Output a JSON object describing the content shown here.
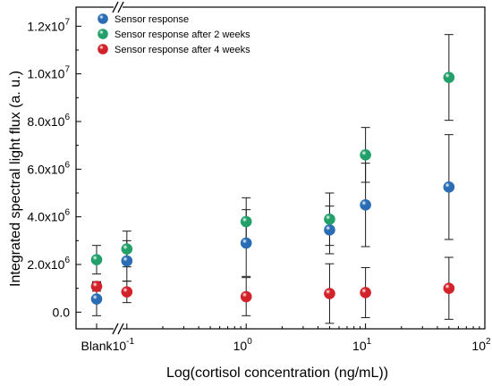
{
  "chart_data": {
    "type": "scatter",
    "xlabel": "Log(cortisol concentration (ng/mL))",
    "ylabel": "Integrated spectral light flux (a. u.)",
    "x_scale": "log",
    "xlim": [
      0.0375,
      100
    ],
    "ylim": [
      -700000,
      12800000
    ],
    "x_break": true,
    "grid": false,
    "legend_position": "top-left",
    "categorical_x": {
      "label": "Blank"
    },
    "x_tick_labels": [
      {
        "value": 0.1,
        "mantissa": "10",
        "exp": "-1"
      },
      {
        "value": 1,
        "mantissa": "10",
        "exp": "0"
      },
      {
        "value": 10,
        "mantissa": "10",
        "exp": "1"
      },
      {
        "value": 100,
        "mantissa": "10",
        "exp": "2"
      }
    ],
    "y_tick_labels": [
      {
        "value": 0,
        "mantissa": "0.0",
        "exp": ""
      },
      {
        "value": 2000000,
        "mantissa": "2.0x10",
        "exp": "6"
      },
      {
        "value": 4000000,
        "mantissa": "4.0x10",
        "exp": "6"
      },
      {
        "value": 6000000,
        "mantissa": "6.0x10",
        "exp": "6"
      },
      {
        "value": 8000000,
        "mantissa": "8.0x10",
        "exp": "6"
      },
      {
        "value": 10000000,
        "mantissa": "1.0x10",
        "exp": "7"
      },
      {
        "value": 12000000,
        "mantissa": "1.2x10",
        "exp": "7"
      }
    ],
    "series": [
      {
        "name": "Sensor response",
        "color": "#2a6db5",
        "points": [
          {
            "x": "Blank",
            "y": 550000,
            "err": 700000
          },
          {
            "x": 0.1,
            "y": 2150000,
            "err": 850000
          },
          {
            "x": 1,
            "y": 2900000,
            "err": 1400000
          },
          {
            "x": 5,
            "y": 3450000,
            "err": 1000000
          },
          {
            "x": 10,
            "y": 4500000,
            "err": 1750000
          },
          {
            "x": 50,
            "y": 5250000,
            "err": 2200000
          }
        ]
      },
      {
        "name": "Sensor response after 2 weeks",
        "color": "#23a06a",
        "points": [
          {
            "x": "Blank",
            "y": 2200000,
            "err": 600000
          },
          {
            "x": 0.1,
            "y": 2650000,
            "err": 750000
          },
          {
            "x": 1,
            "y": 3800000,
            "err": 1000000
          },
          {
            "x": 5,
            "y": 3900000,
            "err": 1100000
          },
          {
            "x": 10,
            "y": 6600000,
            "err": 1150000
          },
          {
            "x": 50,
            "y": 9850000,
            "err": 1800000
          }
        ]
      },
      {
        "name": "Sensor response after 4 weeks",
        "color": "#d2222a",
        "points": [
          {
            "x": "Blank",
            "y": 1080000,
            "err": 200000
          },
          {
            "x": 0.1,
            "y": 850000,
            "err": 450000
          },
          {
            "x": 1,
            "y": 650000,
            "err": 800000
          },
          {
            "x": 5,
            "y": 780000,
            "err": 1250000
          },
          {
            "x": 10,
            "y": 820000,
            "err": 1050000
          },
          {
            "x": 50,
            "y": 1000000,
            "err": 1300000
          }
        ]
      }
    ]
  }
}
